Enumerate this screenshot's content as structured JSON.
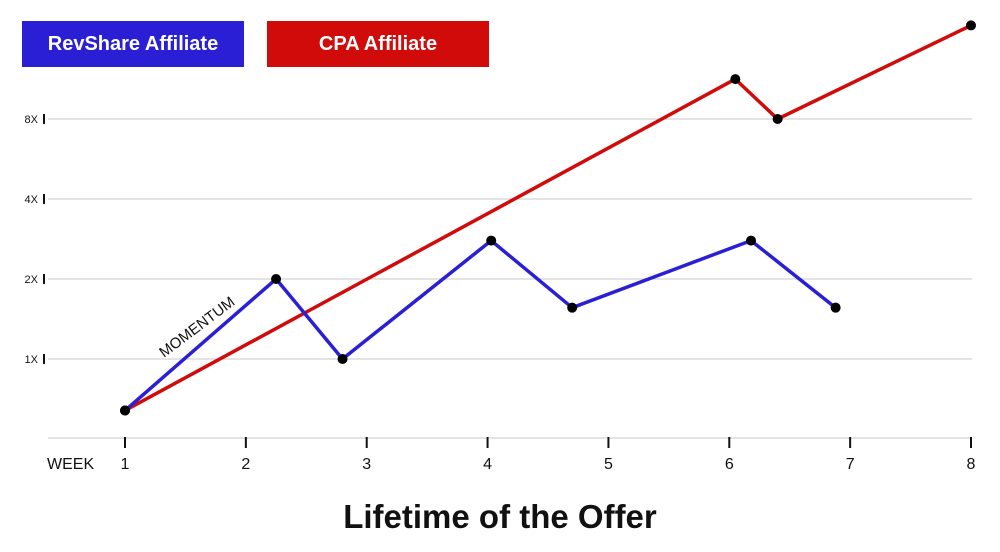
{
  "chart_data": {
    "type": "line",
    "title": "Lifetime of the Offer",
    "xlabel": "WEEK",
    "x_ticks": [
      "1",
      "2",
      "3",
      "4",
      "5",
      "6",
      "7",
      "8"
    ],
    "xlim": [
      1,
      8
    ],
    "y_ticks": [
      "1X",
      "2X",
      "4X",
      "8X"
    ],
    "y_scale": "log2",
    "grid": true,
    "legend_placement": "top-left",
    "annotation": "MOMENTUM",
    "series": [
      {
        "name": "RevShare Affiliate",
        "color": "#2b1fd6",
        "x": [
          1,
          2.25,
          2.8,
          4.03,
          4.7,
          6.18,
          6.88
        ],
        "y": [
          0.64,
          2.0,
          1.0,
          2.79,
          1.56,
          2.79,
          1.56
        ]
      },
      {
        "name": "CPA Affiliate",
        "color": "#d10a0a",
        "x": [
          1,
          6.05,
          6.4,
          8
        ],
        "y": [
          0.64,
          11.3,
          8.0,
          18.0
        ]
      }
    ]
  }
}
